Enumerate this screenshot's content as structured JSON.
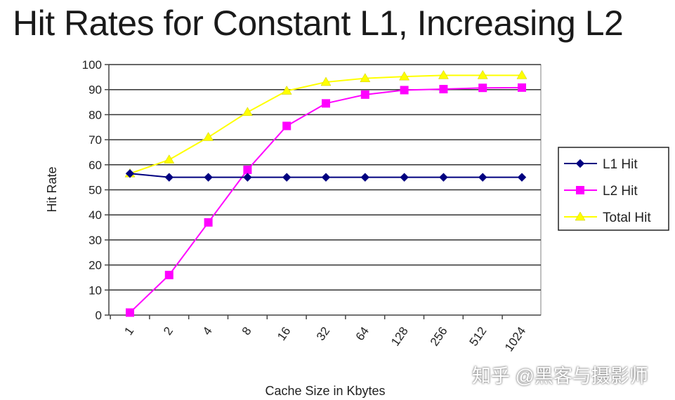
{
  "slide": {
    "title": "Hit Rates for Constant L1, Increasing L2"
  },
  "watermark": {
    "text": "知乎 @黑客与摄影师"
  },
  "chart_data": {
    "type": "line",
    "title": "",
    "xlabel": "Cache Size in Kbytes",
    "ylabel": "Hit Rate",
    "ylim": [
      0,
      100
    ],
    "yticks": [
      0,
      10,
      20,
      30,
      40,
      50,
      60,
      70,
      80,
      90,
      100
    ],
    "categories": [
      "1",
      "2",
      "4",
      "8",
      "16",
      "32",
      "64",
      "128",
      "256",
      "512",
      "1024"
    ],
    "grid": true,
    "legend": "right",
    "series": [
      {
        "name": "L1 Hit",
        "color": "#000080",
        "marker": "diamond",
        "values": [
          56.5,
          55,
          55,
          55,
          55,
          55,
          55,
          55,
          55,
          55,
          55
        ]
      },
      {
        "name": "L2 Hit",
        "color": "#ff00ff",
        "marker": "square",
        "values": [
          1,
          16,
          37,
          58,
          75.5,
          84.5,
          88,
          89.8,
          90.2,
          90.7,
          90.8
        ]
      },
      {
        "name": "Total Hit",
        "color": "#ffff00",
        "marker": "triangle",
        "values": [
          56.5,
          62,
          71,
          81,
          89.5,
          93,
          94.5,
          95.2,
          95.7,
          95.7,
          95.7
        ]
      }
    ]
  }
}
